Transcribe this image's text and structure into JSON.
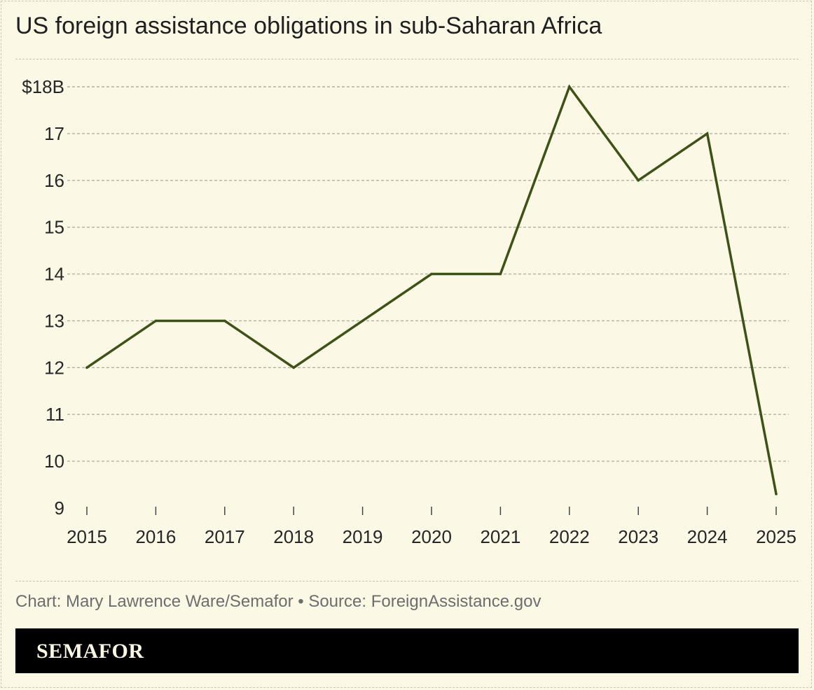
{
  "title": "US foreign assistance obligations in sub-Saharan Africa",
  "source": "Chart: Mary Lawrence Ware/Semafor • Source: ForeignAssistance.gov",
  "brand": "SEMAFOR",
  "colors": {
    "line": "#3d5216",
    "background": "#fcf8e6",
    "grid": "#b5b09d"
  },
  "chart_data": {
    "type": "line",
    "title": "US foreign assistance obligations in sub-Saharan Africa",
    "xlabel": "",
    "ylabel": "",
    "x": [
      2015,
      2016,
      2017,
      2018,
      2019,
      2020,
      2021,
      2022,
      2023,
      2024,
      2025
    ],
    "x_tick_labels": [
      "2015",
      "2016",
      "2017",
      "2018",
      "2019",
      "2020",
      "2021",
      "2022",
      "2023",
      "2024",
      "2025"
    ],
    "series": [
      {
        "values": [
          12,
          13,
          13,
          12,
          13,
          14,
          14,
          18,
          16,
          17,
          9.3
        ]
      }
    ],
    "y_ticks": [
      9,
      10,
      11,
      12,
      13,
      14,
      15,
      16,
      17,
      18
    ],
    "y_tick_labels": [
      "9",
      "10",
      "11",
      "12",
      "13",
      "14",
      "15",
      "16",
      "17",
      "$18B"
    ],
    "ylim": [
      9,
      18
    ],
    "grid": true,
    "legend": "none"
  }
}
